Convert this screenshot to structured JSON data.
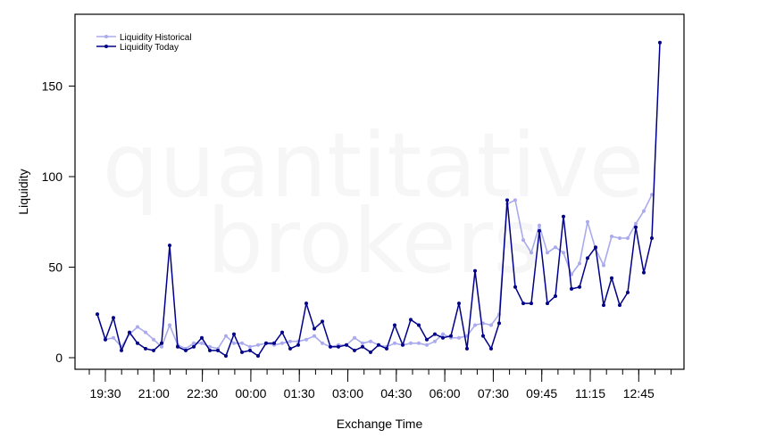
{
  "watermark": {
    "line1": "quantitative",
    "line2": "brokers"
  },
  "chart_data": {
    "type": "line",
    "xlabel": "Exchange Time",
    "ylabel": "Liquidity",
    "x_ticks": [
      "19:30",
      "21:00",
      "22:30",
      "00:00",
      "01:30",
      "03:00",
      "04:30",
      "06:00",
      "07:30",
      "09:45",
      "11:15",
      "12:45"
    ],
    "y_ticks": [
      0,
      50,
      100,
      150
    ],
    "ylim": [
      -6,
      190
    ],
    "grid": false,
    "legend_position": "top-left",
    "series": [
      {
        "name": "Liquidity Historical",
        "color": "#aaaaee",
        "values": [
          24,
          10,
          11,
          6,
          13,
          17,
          14,
          10,
          6,
          18,
          7,
          5,
          8,
          8,
          6,
          5,
          12,
          8,
          8,
          6,
          7,
          8,
          7,
          8,
          9,
          9,
          10,
          12,
          8,
          6,
          7,
          7,
          11,
          8,
          9,
          7,
          6,
          8,
          7,
          8,
          8,
          7,
          9,
          13,
          11,
          11,
          12,
          18,
          19,
          18,
          24,
          85,
          87,
          65,
          58,
          73,
          58,
          61,
          58,
          46,
          52,
          75,
          60,
          51,
          67,
          66,
          66,
          74,
          81,
          90
        ]
      },
      {
        "name": "Liquidity Today",
        "color": "#000088",
        "values": [
          24,
          10,
          22,
          4,
          14,
          8,
          5,
          4,
          8,
          62,
          6,
          4,
          6,
          11,
          4,
          4,
          1,
          13,
          3,
          4,
          1,
          8,
          8,
          14,
          5,
          7,
          30,
          16,
          20,
          6,
          6,
          7,
          4,
          6,
          3,
          7,
          5,
          18,
          7,
          21,
          18,
          10,
          13,
          11,
          12,
          30,
          5,
          48,
          12,
          5,
          19,
          87,
          39,
          30,
          30,
          70,
          30,
          34,
          78,
          38,
          39,
          55,
          61,
          29,
          44,
          29,
          36,
          72,
          47,
          66,
          174
        ]
      }
    ]
  }
}
